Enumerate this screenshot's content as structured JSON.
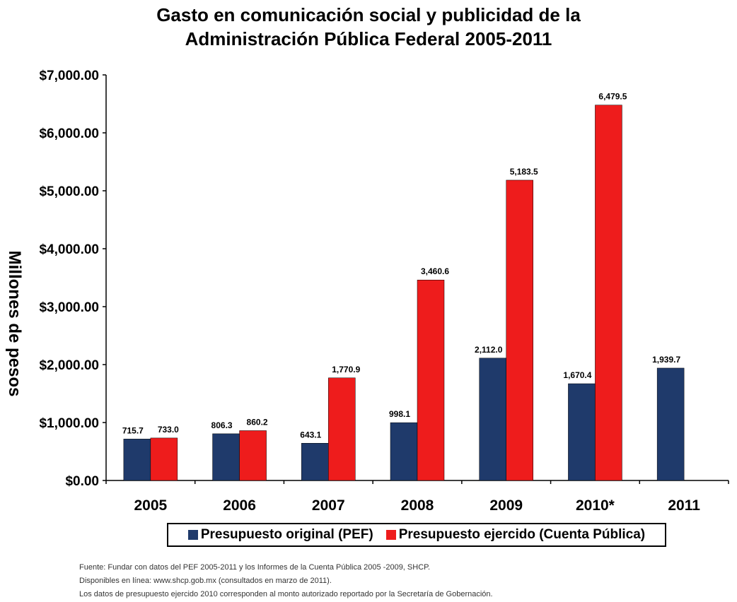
{
  "chart_data": {
    "type": "bar",
    "title_lines": [
      "Gasto en comunicación social y publicidad de la",
      "Administración Pública Federal 2005-2011"
    ],
    "ylabel": "Millones de pesos",
    "xlabel": "",
    "categories": [
      "2005",
      "2006",
      "2007",
      "2008",
      "2009",
      "2010*",
      "2011"
    ],
    "ylim": [
      0,
      7000
    ],
    "y_ticks": [
      0,
      1000,
      2000,
      3000,
      4000,
      5000,
      6000,
      7000
    ],
    "y_tick_labels": [
      "$0.00",
      "$1,000.00",
      "$2,000.00",
      "$3,000.00",
      "$4,000.00",
      "$5,000.00",
      "$6,000.00",
      "$7,000.00"
    ],
    "series": [
      {
        "name": "Presupuesto original (PEF)",
        "color": "#1F3A6B",
        "values": [
          715.7,
          806.3,
          643.1,
          998.1,
          2112.0,
          1670.4,
          1939.7
        ],
        "labels": [
          "715.7",
          "806.3",
          "643.1",
          "998.1",
          "2,112.0",
          "1,670.4",
          "1,939.7"
        ]
      },
      {
        "name": "Presupuesto ejercido (Cuenta Pública)",
        "color": "#EE1C1C",
        "values": [
          733.0,
          860.2,
          1770.9,
          3460.6,
          5183.5,
          6479.5,
          null
        ],
        "labels": [
          "733.0",
          "860.2",
          "1,770.9",
          "3,460.6",
          "5,183.5",
          "6,479.5",
          null
        ]
      }
    ],
    "grid": false,
    "legend_position": "bottom"
  },
  "source_notes": [
    "Fuente: Fundar con datos del PEF  2005-2011 y los Informes de la Cuenta Pública 2005  -2009, SHCP.",
    "Disponibles en línea: www.shcp.gob.mx (consultados en marzo de 2011).",
    "Los datos de presupuesto ejercido 2010 corresponden al monto autorizado reportado por la Secretaría de Gobernación."
  ]
}
